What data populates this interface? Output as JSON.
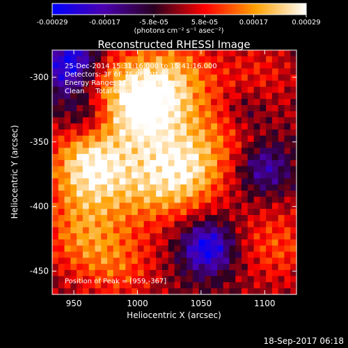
{
  "chart_data": {
    "type": "heatmap",
    "title": "Reconstructed RHESSI Image",
    "xlabel": "Heliocentric X (arcsec)",
    "ylabel": "Heliocentric Y (arcsec)",
    "xlim": [
      933,
      1125
    ],
    "ylim": [
      -468,
      -279
    ],
    "xticks": [
      950,
      1000,
      1050,
      1100
    ],
    "yticks": [
      -300,
      -350,
      -400,
      -450
    ],
    "colorbar": {
      "min": -0.00029,
      "max": 0.00029,
      "ticks": [
        {
          "value": -0.00029,
          "label": "-0.00029"
        },
        {
          "value": -0.00017,
          "label": "-0.00017"
        },
        {
          "value": -5.8e-05,
          "label": "-5.8e-05"
        },
        {
          "value": 5.8e-05,
          "label": "5.8e-05"
        },
        {
          "value": 0.00017,
          "label": "0.00017"
        },
        {
          "value": 0.00029,
          "label": "0.00029"
        }
      ],
      "units_label": "(photons cm⁻² s⁻¹ asec⁻²)",
      "colormap": [
        "#0000ff",
        "#4a00b0",
        "#2a0020",
        "#ff0000",
        "#ffa000",
        "#ffffff"
      ]
    },
    "grid": "off",
    "sources": [
      {
        "x": 963,
        "y": -368,
        "value": 0.00029
      },
      {
        "x": 1010,
        "y": -330,
        "value": 0.00021
      },
      {
        "x": 1038,
        "y": -372,
        "value": 0.00024
      },
      {
        "x": 990,
        "y": -310,
        "value": 0.00018
      },
      {
        "x": 1030,
        "y": -300,
        "value": 0.00017
      },
      {
        "x": 1005,
        "y": -385,
        "value": 0.00014
      },
      {
        "x": 955,
        "y": -420,
        "value": 0.00015
      },
      {
        "x": 985,
        "y": -445,
        "value": 0.00012
      },
      {
        "x": 1070,
        "y": -340,
        "value": 9e-05
      },
      {
        "x": 1110,
        "y": -430,
        "value": 0.00012
      },
      {
        "x": 1095,
        "y": -300,
        "value": 8e-05
      }
    ],
    "sinks": [
      {
        "x": 1055,
        "y": -432,
        "value": -0.00026
      },
      {
        "x": 1100,
        "y": -370,
        "value": -0.00016
      },
      {
        "x": 940,
        "y": -300,
        "value": -0.0001
      },
      {
        "x": 960,
        "y": -330,
        "value": -0.00012
      },
      {
        "x": 1085,
        "y": -325,
        "value": -0.0001
      },
      {
        "x": 950,
        "y": -285,
        "value": -0.0002
      }
    ],
    "annotations": [
      "25-Dec-2014 15:31:16.000 to 15:41:16.000",
      "Detectors: 3F 6F 7F 9F, Att 0",
      "Energy Range: 12.0 - 25.0 keV",
      "Clean     Total counts: 5.71E+03"
    ],
    "peak_annotation": "Position of Peak = [959,-367]"
  },
  "footer": {
    "timestamp": "18-Sep-2017 06:18"
  }
}
